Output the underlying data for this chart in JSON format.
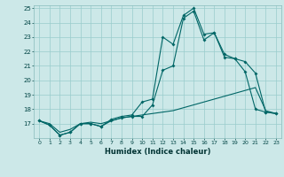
{
  "xlabel": "Humidex (Indice chaleur)",
  "xlim": [
    -0.5,
    23.5
  ],
  "ylim": [
    16,
    25.2
  ],
  "yticks": [
    17,
    18,
    19,
    20,
    21,
    22,
    23,
    24,
    25
  ],
  "xticks": [
    0,
    1,
    2,
    3,
    4,
    5,
    6,
    7,
    8,
    9,
    10,
    11,
    12,
    13,
    14,
    15,
    16,
    17,
    18,
    19,
    20,
    21,
    22,
    23
  ],
  "bg_color": "#cce8e8",
  "grid_color": "#99cccc",
  "line_color": "#006666",
  "series": [
    {
      "x": [
        0,
        1,
        2,
        3,
        4,
        5,
        6,
        7,
        8,
        9,
        10,
        11,
        12,
        13,
        14,
        15,
        16,
        17,
        18,
        19,
        20,
        21,
        22,
        23
      ],
      "y": [
        17.2,
        16.9,
        16.2,
        16.4,
        17.0,
        17.0,
        16.8,
        17.3,
        17.5,
        17.6,
        18.5,
        18.7,
        23.0,
        22.5,
        24.5,
        25.0,
        23.2,
        23.3,
        21.8,
        21.5,
        20.6,
        18.0,
        17.8,
        17.7
      ],
      "marker": true
    },
    {
      "x": [
        0,
        1,
        2,
        3,
        4,
        5,
        6,
        7,
        8,
        9,
        10,
        11,
        12,
        13,
        14,
        15,
        16,
        17,
        18,
        19,
        20,
        21,
        22,
        23
      ],
      "y": [
        17.2,
        16.9,
        16.2,
        16.4,
        17.0,
        17.0,
        16.8,
        17.2,
        17.4,
        17.5,
        17.5,
        18.3,
        20.7,
        21.0,
        24.3,
        24.8,
        22.8,
        23.3,
        21.6,
        21.5,
        21.3,
        20.5,
        17.8,
        17.7
      ],
      "marker": true
    },
    {
      "x": [
        0,
        1,
        2,
        3,
        4,
        5,
        6,
        7,
        8,
        9,
        10,
        11,
        12,
        13,
        14,
        15,
        16,
        17,
        18,
        19,
        20,
        21,
        22,
        23
      ],
      "y": [
        17.2,
        17.0,
        16.4,
        16.6,
        17.0,
        17.1,
        17.0,
        17.2,
        17.4,
        17.5,
        17.6,
        17.7,
        17.8,
        17.9,
        18.1,
        18.3,
        18.5,
        18.7,
        18.9,
        19.1,
        19.3,
        19.5,
        17.9,
        17.7
      ],
      "marker": false
    }
  ]
}
